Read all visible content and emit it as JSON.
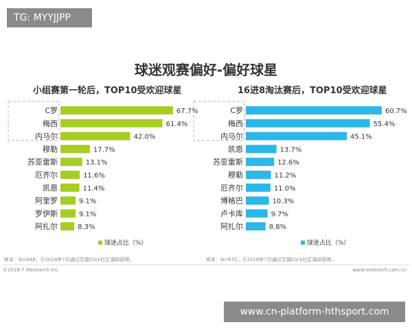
{
  "badge": "TG: MYYJJPP",
  "site_banner": "www.cn-platform-hthsport.com",
  "chart_data": {
    "title": "球迷观赛偏好-偏好球星",
    "charts": [
      {
        "type": "bar",
        "orientation": "horizontal",
        "subtitle": "小组赛第一轮后，TOP10受欢迎球星",
        "color": "#a6cd22",
        "categories": [
          "C罗",
          "梅西",
          "内马尔",
          "穆勒",
          "苏亚雷斯",
          "厄齐尔",
          "凯恩",
          "阿奎罗",
          "罗伊斯",
          "阿扎尔"
        ],
        "values": [
          67.7,
          61.4,
          42.0,
          17.7,
          13.1,
          11.6,
          11.4,
          9.1,
          9.1,
          8.3
        ],
        "labels": [
          "67.7%",
          "61.4%",
          "42.0%",
          "17.7%",
          "13.1%",
          "11.6%",
          "11.4%",
          "9.1%",
          "9.1%",
          "8.3%"
        ],
        "legend": "球迷占比（%）",
        "highlighted": 3,
        "note": "样本：N=648；于2018年7月通过艾瑞Click社区调研获得。"
      },
      {
        "type": "bar",
        "orientation": "horizontal",
        "subtitle": "16进8淘汰赛后，TOP10受欢迎球星",
        "color": "#2bb7e8",
        "categories": [
          "C罗",
          "梅西",
          "内马尔",
          "凯恩",
          "苏亚雷斯",
          "穆勒",
          "厄齐尔",
          "博格巴",
          "卢卡库",
          "阿扎尔"
        ],
        "values": [
          60.7,
          55.4,
          45.1,
          13.7,
          12.6,
          11.2,
          11.0,
          10.3,
          9.7,
          8.8
        ],
        "labels": [
          "60.7%",
          "55.4%",
          "45.1%",
          "13.7%",
          "12.6%",
          "11.2%",
          "11.0%",
          "10.3%",
          "9.7%",
          "8.8%"
        ],
        "legend": "球迷占比（%）",
        "highlighted": 3,
        "note": "样本：N=672；于2018年7月通过艾瑞Click社区调研获得。"
      }
    ],
    "copyright": "©2018.7 iResearch Inc.",
    "website": "www.iresearch.com.cn"
  }
}
